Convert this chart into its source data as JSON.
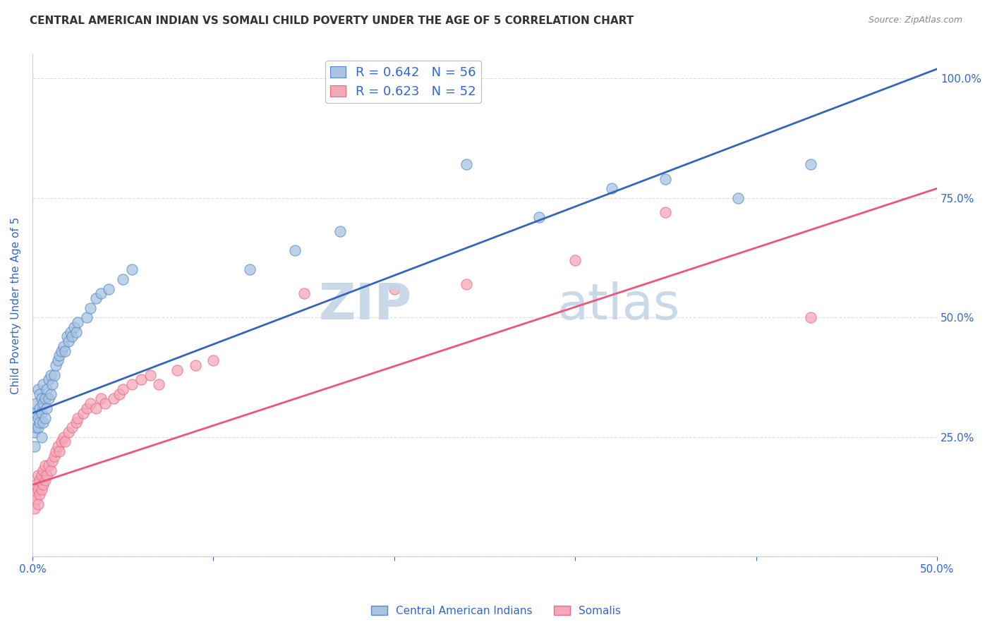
{
  "title": "CENTRAL AMERICAN INDIAN VS SOMALI CHILD POVERTY UNDER THE AGE OF 5 CORRELATION CHART",
  "source": "Source: ZipAtlas.com",
  "ylabel": "Child Poverty Under the Age of 5",
  "xlim": [
    0.0,
    0.5
  ],
  "ylim": [
    0.0,
    1.05
  ],
  "blue_R": 0.642,
  "blue_N": 56,
  "pink_R": 0.623,
  "pink_N": 52,
  "blue_color": "#A8C4E0",
  "pink_color": "#F4A8B8",
  "blue_edge_color": "#5588CC",
  "pink_edge_color": "#EE6688",
  "blue_line_color": "#3366BB",
  "pink_line_color": "#EE5577",
  "watermark_color": "#C5D5E8",
  "axis_color": "#3366CC",
  "grid_color": "#DDDDDD",
  "legend_blue_label": "Central American Indians",
  "legend_pink_label": "Somalis",
  "blue_line_x": [
    0.0,
    0.5
  ],
  "blue_line_y": [
    0.3,
    1.02
  ],
  "pink_line_x": [
    0.0,
    0.5
  ],
  "pink_line_y": [
    0.15,
    0.77
  ],
  "blue_scatter_x": [
    0.001,
    0.001,
    0.002,
    0.002,
    0.002,
    0.003,
    0.003,
    0.003,
    0.004,
    0.004,
    0.004,
    0.005,
    0.005,
    0.005,
    0.006,
    0.006,
    0.006,
    0.007,
    0.007,
    0.008,
    0.008,
    0.009,
    0.009,
    0.01,
    0.01,
    0.011,
    0.012,
    0.013,
    0.014,
    0.015,
    0.016,
    0.017,
    0.018,
    0.019,
    0.02,
    0.021,
    0.022,
    0.023,
    0.024,
    0.025,
    0.03,
    0.032,
    0.035,
    0.038,
    0.042,
    0.05,
    0.055,
    0.12,
    0.145,
    0.17,
    0.24,
    0.28,
    0.32,
    0.35,
    0.39,
    0.43
  ],
  "blue_scatter_y": [
    0.23,
    0.26,
    0.27,
    0.3,
    0.32,
    0.27,
    0.29,
    0.35,
    0.28,
    0.31,
    0.34,
    0.25,
    0.3,
    0.33,
    0.28,
    0.32,
    0.36,
    0.29,
    0.33,
    0.31,
    0.35,
    0.33,
    0.37,
    0.34,
    0.38,
    0.36,
    0.38,
    0.4,
    0.41,
    0.42,
    0.43,
    0.44,
    0.43,
    0.46,
    0.45,
    0.47,
    0.46,
    0.48,
    0.47,
    0.49,
    0.5,
    0.52,
    0.54,
    0.55,
    0.56,
    0.58,
    0.6,
    0.6,
    0.64,
    0.68,
    0.82,
    0.71,
    0.77,
    0.79,
    0.75,
    0.82
  ],
  "pink_scatter_x": [
    0.001,
    0.001,
    0.002,
    0.002,
    0.003,
    0.003,
    0.003,
    0.004,
    0.004,
    0.005,
    0.005,
    0.006,
    0.006,
    0.007,
    0.007,
    0.008,
    0.009,
    0.01,
    0.011,
    0.012,
    0.013,
    0.014,
    0.015,
    0.016,
    0.017,
    0.018,
    0.02,
    0.022,
    0.024,
    0.025,
    0.028,
    0.03,
    0.032,
    0.035,
    0.038,
    0.04,
    0.045,
    0.048,
    0.05,
    0.055,
    0.06,
    0.065,
    0.07,
    0.08,
    0.09,
    0.1,
    0.15,
    0.2,
    0.24,
    0.3,
    0.35,
    0.43
  ],
  "pink_scatter_y": [
    0.1,
    0.13,
    0.12,
    0.15,
    0.11,
    0.14,
    0.17,
    0.13,
    0.16,
    0.14,
    0.17,
    0.15,
    0.18,
    0.16,
    0.19,
    0.17,
    0.19,
    0.18,
    0.2,
    0.21,
    0.22,
    0.23,
    0.22,
    0.24,
    0.25,
    0.24,
    0.26,
    0.27,
    0.28,
    0.29,
    0.3,
    0.31,
    0.32,
    0.31,
    0.33,
    0.32,
    0.33,
    0.34,
    0.35,
    0.36,
    0.37,
    0.38,
    0.36,
    0.39,
    0.4,
    0.41,
    0.55,
    0.56,
    0.57,
    0.62,
    0.72,
    0.5
  ],
  "title_fontsize": 11,
  "background_color": "#FFFFFF"
}
